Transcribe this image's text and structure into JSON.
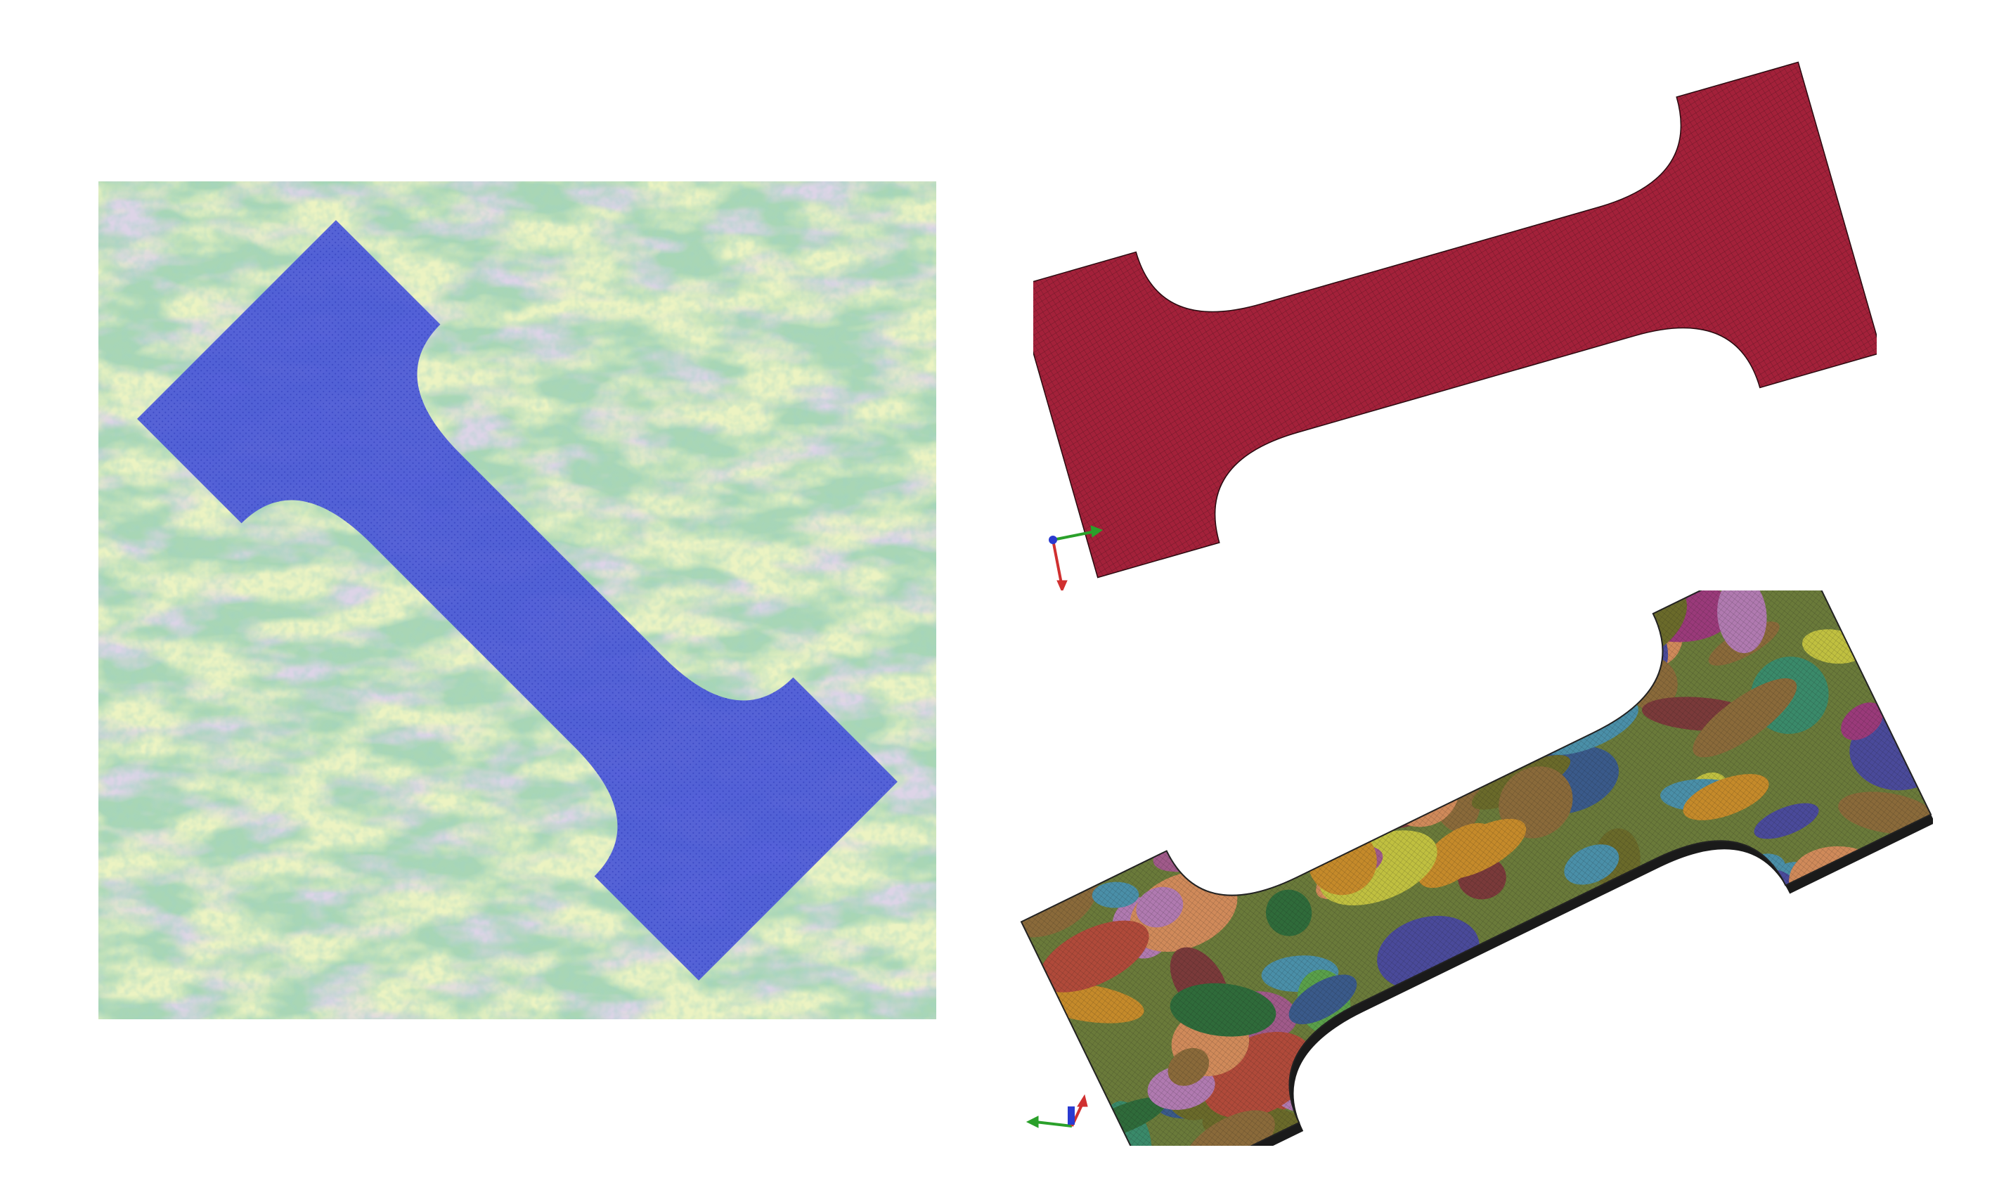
{
  "figure": {
    "panels": [
      {
        "id": "ebsd-map",
        "kind": "grain-orientation-map-with-specimen-overlay"
      },
      {
        "id": "fe-mesh-plain",
        "kind": "finite-element-mesh"
      },
      {
        "id": "fe-mesh-grains",
        "kind": "finite-element-mesh-with-grains"
      }
    ]
  },
  "colors": {
    "map_bg_1": "#a9d6b5",
    "map_bg_2": "#b7a9cc",
    "map_bg_3": "#d7e78a",
    "map_bg_4": "#9fd3c7",
    "specimen_overlay": "#4a57d8",
    "mesh_plain": "#a3213a",
    "mesh_edge": "#2a0a10",
    "mesh_thickness": "#1a1a1a",
    "axis_x": "#d03030",
    "axis_y": "#2aa02a",
    "axis_z": "#2a3ad0"
  },
  "grain_palette": [
    "#2f6b3a",
    "#c58a2a",
    "#9a3a7a",
    "#4a8fa8",
    "#b04a3a",
    "#6a6a2a",
    "#3a5a8a",
    "#8a6a3a",
    "#5aa04a",
    "#a05a8a",
    "#c0c040",
    "#7a3a3a",
    "#3a8a6a",
    "#b07ab0",
    "#d08a5a",
    "#4a4a9a"
  ],
  "triads": [
    {
      "id": "triad-top",
      "labels": {
        "x": "",
        "y": "",
        "z": ""
      }
    },
    {
      "id": "triad-bottom",
      "labels": {
        "x": "",
        "y": "",
        "z": ""
      }
    }
  ]
}
